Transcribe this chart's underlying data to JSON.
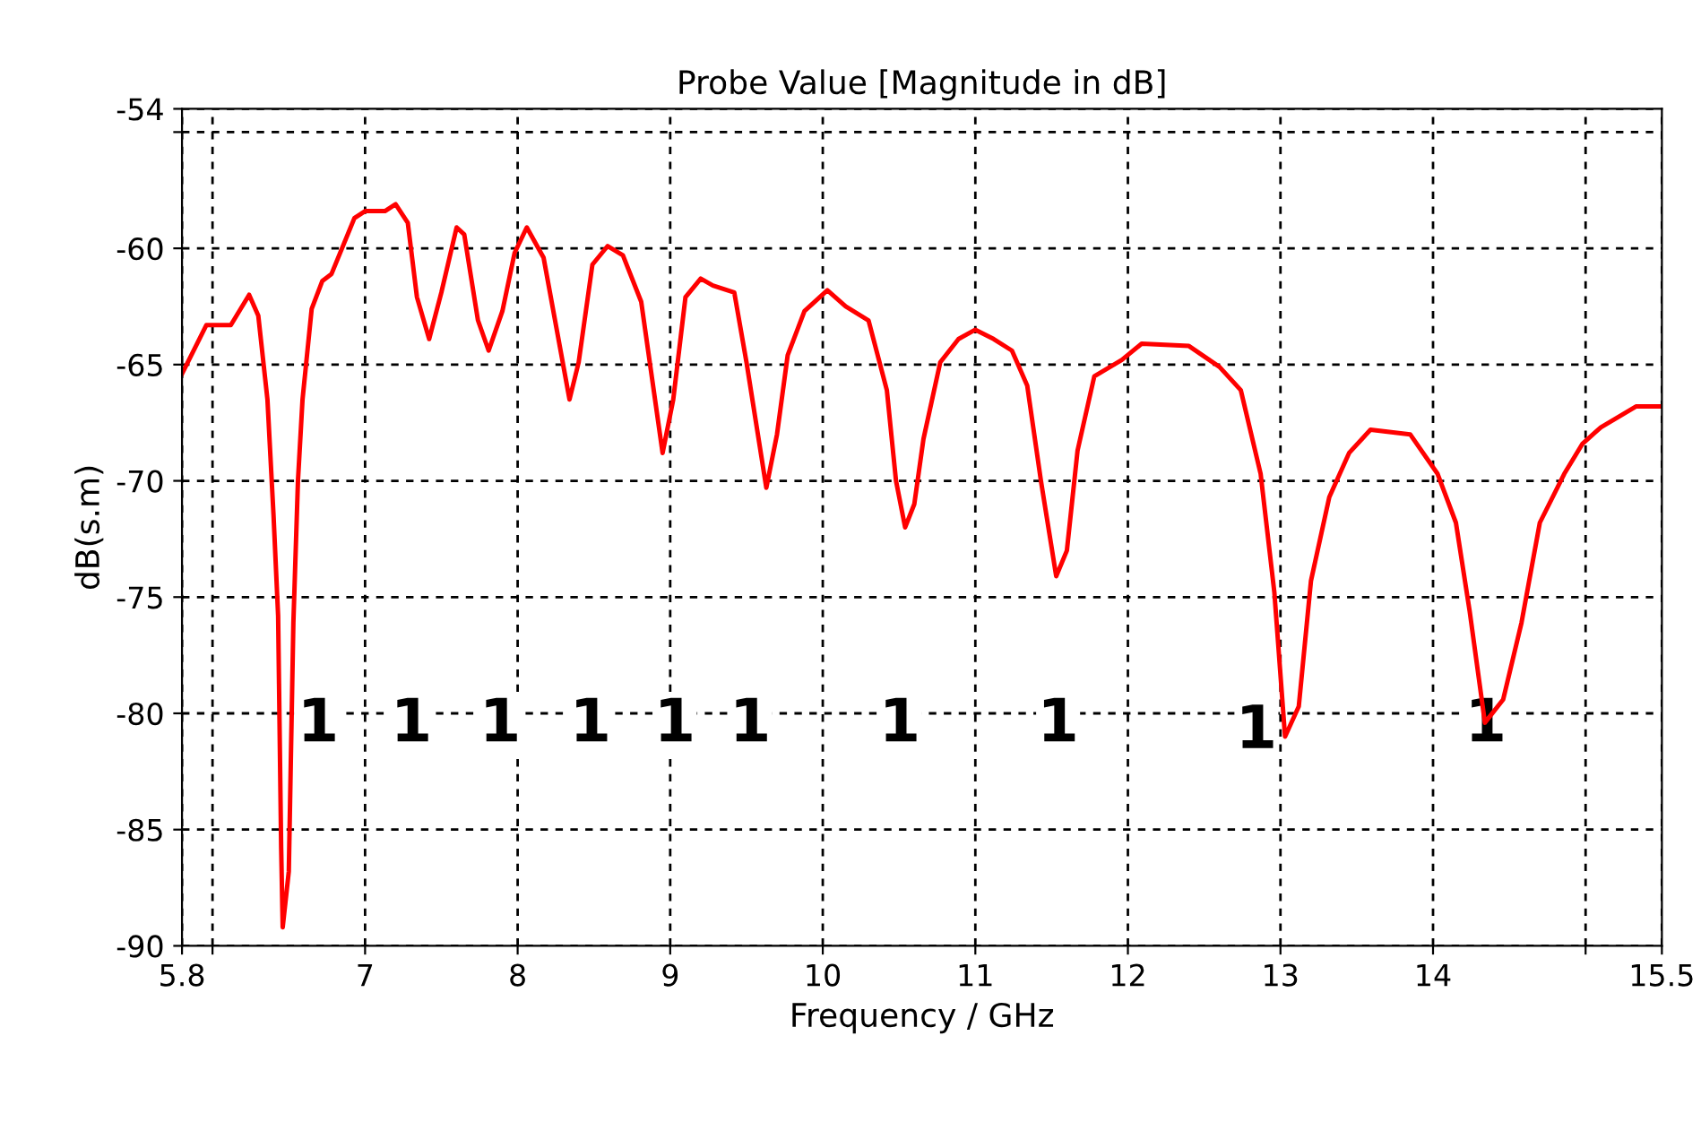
{
  "chart_data": {
    "type": "line",
    "title": "Probe Value [Magnitude in dB]",
    "xlabel": "Frequency / GHz",
    "ylabel": "dB(s.m)",
    "xlim": [
      5.8,
      15.5
    ],
    "xticks": [
      5.8,
      {
        "value": 6,
        "label": null
      },
      7,
      8,
      9,
      10,
      11,
      12,
      13,
      14,
      {
        "value": 15,
        "label": null
      },
      15.5
    ],
    "ylim": [
      -90,
      -54
    ],
    "yticks": [
      -54,
      {
        "value": -55,
        "label": null
      },
      -60,
      -65,
      -70,
      -75,
      -80,
      -85,
      -90
    ],
    "grid": true,
    "line_style": "solid",
    "marker": "none",
    "x": [
      5.8,
      5.96,
      6.12,
      6.24,
      6.3,
      6.36,
      6.4,
      6.43,
      6.45,
      6.46,
      6.5,
      6.53,
      6.56,
      6.59,
      6.65,
      6.72,
      6.78,
      6.93,
      7.0,
      7.13,
      7.2,
      7.28,
      7.34,
      7.42,
      7.5,
      7.6,
      7.65,
      7.74,
      7.81,
      7.9,
      7.98,
      8.06,
      8.17,
      8.34,
      8.4,
      8.49,
      8.59,
      8.69,
      8.81,
      8.95,
      9.02,
      9.1,
      9.2,
      9.28,
      9.42,
      9.5,
      9.63,
      9.7,
      9.77,
      9.88,
      10.03,
      10.15,
      10.3,
      10.42,
      10.48,
      10.54,
      10.6,
      10.66,
      10.77,
      10.89,
      11.0,
      11.12,
      11.24,
      11.34,
      11.43,
      11.53,
      11.6,
      11.67,
      11.78,
      11.96,
      12.09,
      12.4,
      12.6,
      12.74,
      12.87,
      12.96,
      13.03,
      13.12,
      13.2,
      13.32,
      13.45,
      13.59,
      13.85,
      14.03,
      14.15,
      14.24,
      14.34,
      14.46,
      14.58,
      14.7,
      14.86,
      14.98,
      15.1,
      15.33,
      15.5
    ],
    "series": [
      {
        "color": "#ff0000",
        "values": [
          -65.4,
          -63.3,
          -63.3,
          -62.0,
          -62.9,
          -66.5,
          -71.5,
          -75.8,
          -85.8,
          -89.2,
          -86.8,
          -76.1,
          -70,
          -66.5,
          -62.6,
          -61.4,
          -61.1,
          -58.7,
          -58.4,
          -58.4,
          -58.1,
          -58.9,
          -62.1,
          -63.9,
          -61.9,
          -59.1,
          -59.4,
          -63.1,
          -64.4,
          -62.7,
          -60.2,
          -59.1,
          -60.4,
          -66.5,
          -64.9,
          -60.7,
          -59.9,
          -60.3,
          -62.3,
          -68.8,
          -66.5,
          -62.1,
          -61.3,
          -61.6,
          -61.9,
          -64.9,
          -70.3,
          -68,
          -64.6,
          -62.7,
          -61.8,
          -62.5,
          -63.1,
          -66.1,
          -70,
          -72,
          -71,
          -68.2,
          -64.9,
          -63.9,
          -63.5,
          -63.9,
          -64.4,
          -65.9,
          -70,
          -74.1,
          -73,
          -68.7,
          -65.5,
          -64.8,
          -64.1,
          -64.2,
          -65.1,
          -66.1,
          -69.7,
          -74.8,
          -81,
          -79.7,
          -74.3,
          -70.7,
          -68.8,
          -67.8,
          -68,
          -69.7,
          -71.8,
          -75.6,
          -80.4,
          -79.4,
          -76.1,
          -71.8,
          -69.7,
          -68.4,
          -67.7,
          -66.8,
          -66.8
        ]
      }
    ],
    "annotations": [
      "1",
      "1",
      "1",
      "1",
      "1",
      "1",
      "1",
      "1",
      "1",
      "1"
    ]
  }
}
